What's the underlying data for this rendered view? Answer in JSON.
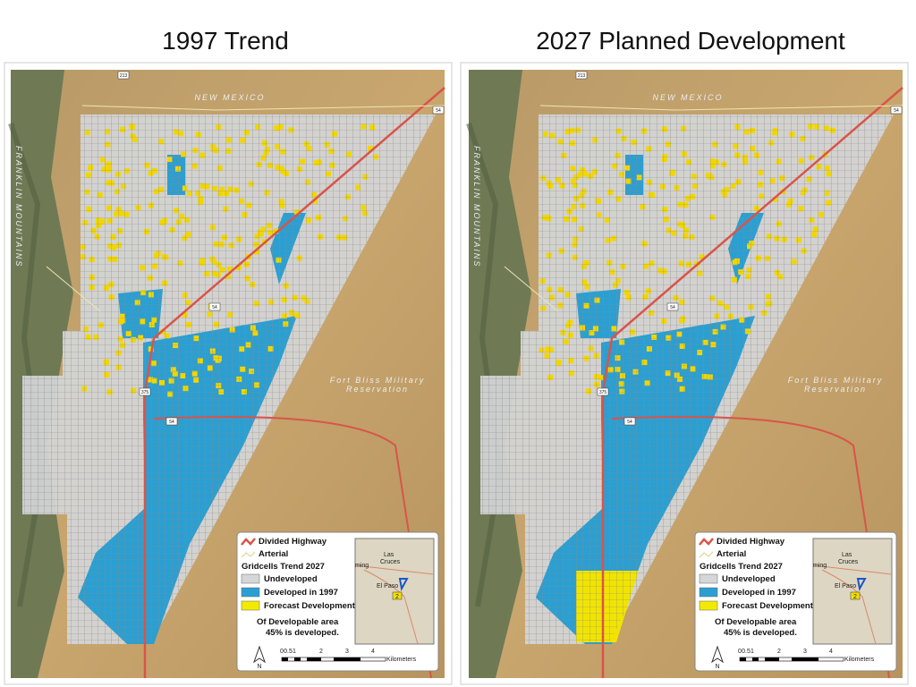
{
  "panels": [
    {
      "title": "1997 Trend",
      "legend": {
        "highway": "Divided Highway",
        "arterial": "Arterial",
        "heading": "Gridcells Trend 2027",
        "undeveloped": "Undeveloped",
        "developed": "Developed in 1997",
        "forecast": "Forecast Development",
        "note": "Of Developable area",
        "percent": "45% is developed."
      }
    },
    {
      "title": "2027 Planned Development",
      "legend": {
        "highway": "Divided Highway",
        "arterial": "Arterial",
        "heading": "Gridcells Trend 2027",
        "undeveloped": "Undeveloped",
        "developed": "Developed in 1997",
        "forecast": "Forecast Development",
        "note": "Of Developable area",
        "percent": "45% is developed."
      }
    }
  ],
  "map_labels": {
    "state": "NEW MEXICO",
    "mountains": "FRANKLIN MOUNTAINS",
    "base": "Fort Bliss Military",
    "base2": "Reservation",
    "shields": [
      "213",
      "54",
      "54",
      "375",
      "54"
    ]
  },
  "inset": {
    "city1": "Las",
    "city1b": "Cruces",
    "city2": "El Paso",
    "road": "2",
    "road2": "ming"
  },
  "north": "N",
  "scale": {
    "ticks": [
      "0",
      "0.5",
      "1",
      "2",
      "3",
      "4"
    ],
    "unit": "Kilometers"
  }
}
